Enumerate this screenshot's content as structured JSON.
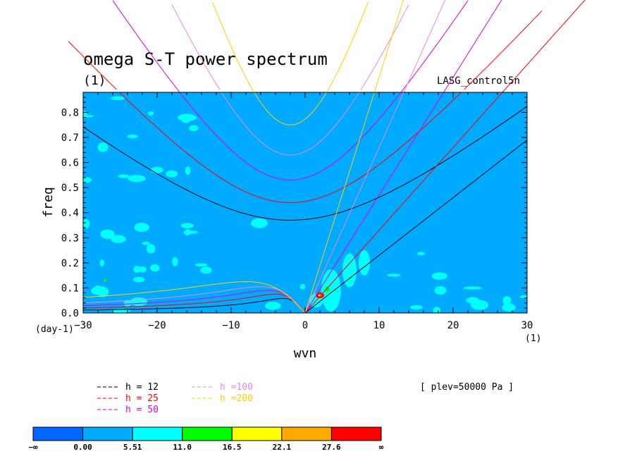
{
  "chart_data": {
    "type": "line",
    "title": "omega S-T power spectrum",
    "subtitle": "(1)",
    "dataset_label": "LASG_control5n",
    "xlabel": "wvn",
    "ylabel": "freq",
    "x_unit": "(1)",
    "y_unit": "(day-1)",
    "xlim": [
      -30,
      30
    ],
    "ylim": [
      0,
      0.88
    ],
    "x_ticks": [
      -30,
      -20,
      -10,
      0,
      10,
      20,
      30
    ],
    "y_ticks": [
      0.0,
      0.1,
      0.2,
      0.3,
      0.4,
      0.5,
      0.6,
      0.7,
      0.8
    ],
    "x_tick_labels": [
      "−30",
      "−20",
      "−10",
      "0",
      "10",
      "20",
      "30"
    ],
    "y_tick_labels": [
      "0.0",
      "0.1",
      "0.2",
      "0.3",
      "0.4",
      "0.5",
      "0.6",
      "0.7",
      "0.8"
    ],
    "background_fill": "#00aaff",
    "annotation": "[ plev=50000 Pa ]",
    "series": [
      {
        "name": "h = 12",
        "color": "#000000",
        "equivalent_depth_m": 12,
        "inertia_gravity_freq_at_k0": 0.37,
        "kelvin_slope": 0.023,
        "rossby_peak": [
          -3,
          0.058
        ]
      },
      {
        "name": "h = 25",
        "color": "#ff0000",
        "equivalent_depth_m": 25,
        "inertia_gravity_freq_at_k0": 0.44,
        "kelvin_slope": 0.033,
        "rossby_peak": [
          -4,
          0.075
        ]
      },
      {
        "name": "h = 50",
        "color": "#dd00dd",
        "equivalent_depth_m": 50,
        "inertia_gravity_freq_at_k0": 0.53,
        "kelvin_slope": 0.047,
        "rossby_peak": [
          -5,
          0.09
        ]
      },
      {
        "name": "h =100",
        "color": "#ee88dd",
        "equivalent_depth_m": 100,
        "inertia_gravity_freq_at_k0": 0.63,
        "kelvin_slope": 0.066,
        "rossby_peak": [
          -6,
          0.105
        ]
      },
      {
        "name": "h =200",
        "color": "#ffcc00",
        "equivalent_depth_m": 200,
        "inertia_gravity_freq_at_k0": 0.75,
        "kelvin_slope": 0.094,
        "rossby_peak": [
          -8,
          0.125
        ]
      }
    ],
    "colorbar": {
      "labels": [
        "−∞",
        "0.00",
        "5.51",
        "11.0",
        "16.5",
        "22.1",
        "27.6",
        "∞"
      ],
      "colors": [
        "#0066ff",
        "#00aaff",
        "#00ffff",
        "#00ff00",
        "#ffff00",
        "#ffaa00",
        "#ff0000"
      ]
    },
    "power_patches": {
      "light_color": "#00ffff",
      "green_color": "#00ff00",
      "red_color": "#ff0000",
      "peak": [
        2,
        0.07
      ]
    }
  }
}
